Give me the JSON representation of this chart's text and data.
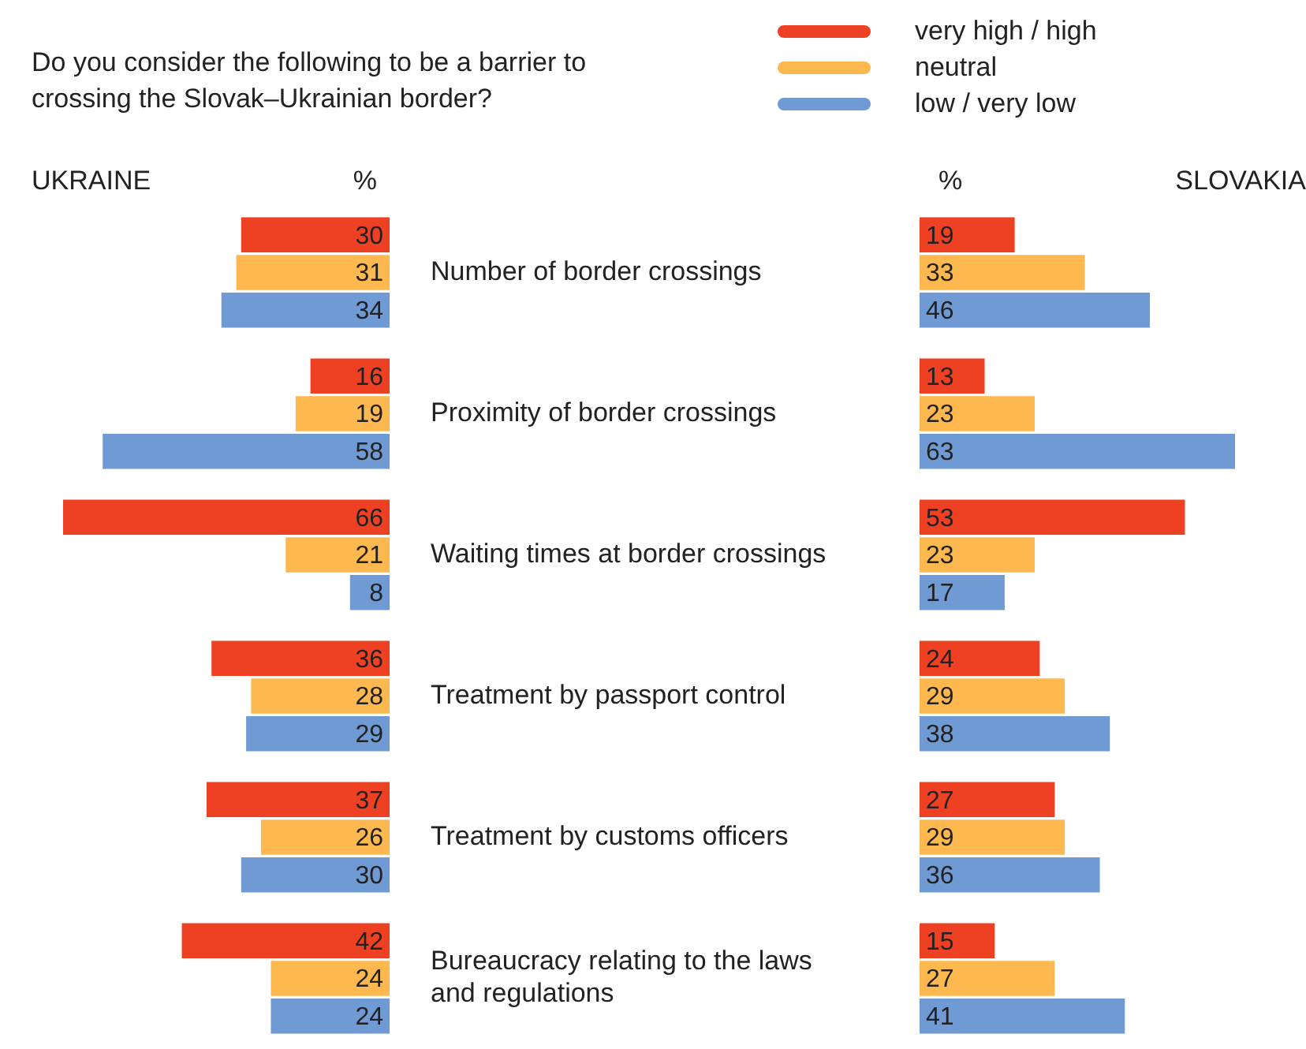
{
  "chart_data": [
    {
      "type": "bar",
      "orientation": "horizontal",
      "title": "Do you consider the following to be a barrier to crossing the Slovak–Ukrainian border?",
      "subtitle": "UKRAINE",
      "xlabel": "%",
      "categories": [
        "Number of border crossings",
        "Proximity of border crossings",
        "Waiting times at border crossings",
        "Treatment by passport control",
        "Treatment by customs officers",
        "Bureaucracy relating to the laws and regulations"
      ],
      "series": [
        {
          "color": "#ee4123",
          "values": [
            30,
            16,
            66,
            36,
            37,
            42
          ]
        },
        {
          "color": "#fdb94f",
          "values": [
            31,
            19,
            21,
            28,
            26,
            24
          ]
        },
        {
          "color": "#6f9ad3",
          "values": [
            34,
            58,
            8,
            29,
            30,
            24
          ]
        }
      ],
      "xlim": [
        66,
        0
      ],
      "tick_labels": "y",
      "data_labels": true
    },
    {
      "type": "bar",
      "orientation": "horizontal",
      "subtitle": "SLOVAKIA",
      "xlabel": "%",
      "categories": [
        null,
        null,
        null,
        null,
        null,
        null
      ],
      "series": [
        {
          "name": "very high / high",
          "color": "#ee4123",
          "values": [
            19,
            13,
            53,
            24,
            27,
            15
          ]
        },
        {
          "name": "neutral",
          "color": "#fdb94f",
          "values": [
            33,
            23,
            23,
            29,
            29,
            27
          ]
        },
        {
          "name": "low / very low",
          "color": "#6f9ad3",
          "values": [
            46,
            63,
            17,
            38,
            36,
            41
          ]
        }
      ],
      "xlim": [
        0,
        63
      ],
      "tick_labels": false,
      "data_labels": true,
      "legend": "top"
    }
  ]
}
